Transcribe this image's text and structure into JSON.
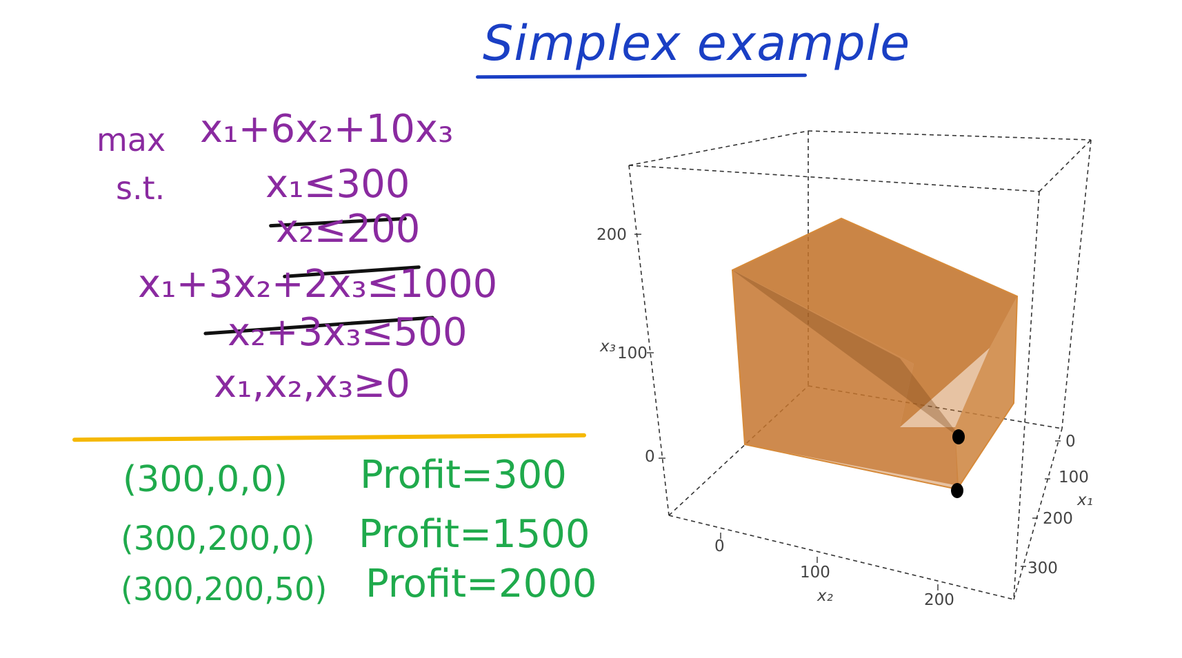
{
  "title": "Simplex example",
  "lp": {
    "objective_label": "max",
    "objective": "x₁+6x₂+10x₃",
    "st_label": "s.t.",
    "constraints": [
      "x₁≤300",
      "x₂≤200",
      "x₁+3x₂+2x₃≤1000",
      "x₂+3x₃≤500",
      "x₁,x₂,x₃≥0"
    ]
  },
  "points": [
    {
      "coords": "(300,0,0)",
      "profit": "Profit=300"
    },
    {
      "coords": "(300,200,0)",
      "profit": "Profit=1500"
    },
    {
      "coords": "(300,200,50)",
      "profit": "Profit=2000"
    }
  ],
  "plot": {
    "z_axis_label": "x₃",
    "x1_axis_label": "x₁",
    "x2_axis_label": "x₂",
    "z_ticks": [
      "200",
      "100",
      "0"
    ],
    "x1_ticks": [
      "0",
      "100",
      "200",
      "300"
    ],
    "x2_ticks": [
      "0",
      "100",
      "200"
    ],
    "solid_color": "#c9772e",
    "solid_edge_color": "#d68a3a"
  },
  "colors": {
    "title": "#1a3fc4",
    "lp_text": "#8a2aa0",
    "points_text": "#1faa4c",
    "divider": "#f5b800"
  }
}
